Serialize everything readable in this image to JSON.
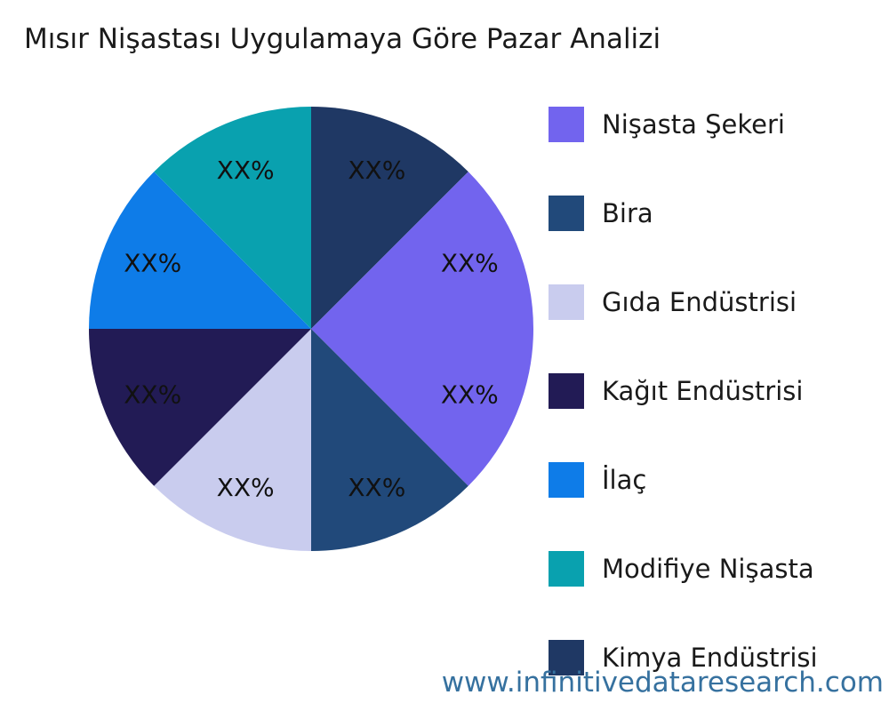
{
  "title": "Mısır Nişastası Uygulamaya Göre Pazar Analizi",
  "watermark": "www.infinitivedataresearch.com",
  "chart_data": {
    "type": "pie",
    "title": "Mısır Nişastası Uygulamaya Göre Pazar Analizi",
    "value_format": "placeholder_percent",
    "start_angle_deg": 0,
    "direction": "clockwise",
    "legend_position": "right",
    "slices": [
      {
        "label": "Nişasta Şekeri",
        "value": 12.5,
        "display": "XX%",
        "color": "#7264EE"
      },
      {
        "label": "Bira",
        "value": 12.5,
        "display": "XX%",
        "color": "#21497A"
      },
      {
        "label": "Gıda Endüstrisi",
        "value": 12.5,
        "display": "XX%",
        "color": "#C9CCEE"
      },
      {
        "label": "Kağıt Endüstrisi",
        "value": 12.5,
        "display": "XX%",
        "color": "#221B55"
      },
      {
        "label": "İlaç",
        "value": 12.5,
        "display": "XX%",
        "color": "#0E7CE8"
      },
      {
        "label": "Modifiye Nişasta",
        "value": 12.5,
        "display": "XX%",
        "color": "#09A1AF"
      },
      {
        "label": "Kimya Endüstrisi",
        "value": 12.5,
        "display": "XX%",
        "color": "#1F3864"
      },
      {
        "label": "Nişasta Şekeri",
        "value": 12.5,
        "display": "XX%",
        "color": "#7264EE"
      }
    ]
  },
  "legend": {
    "items": [
      {
        "label": "Nişasta Şekeri",
        "color": "#7264EE"
      },
      {
        "label": "Bira",
        "color": "#21497A"
      },
      {
        "label": "Gıda Endüstrisi",
        "color": "#C9CCEE"
      },
      {
        "label": "Kağıt Endüstrisi",
        "color": "#221B55"
      },
      {
        "label": "İlaç",
        "color": "#0E7CE8"
      },
      {
        "label": "Modifiye Nişasta",
        "color": "#09A1AF"
      },
      {
        "label": "Kimya Endüstrisi",
        "color": "#1F3864"
      }
    ]
  }
}
